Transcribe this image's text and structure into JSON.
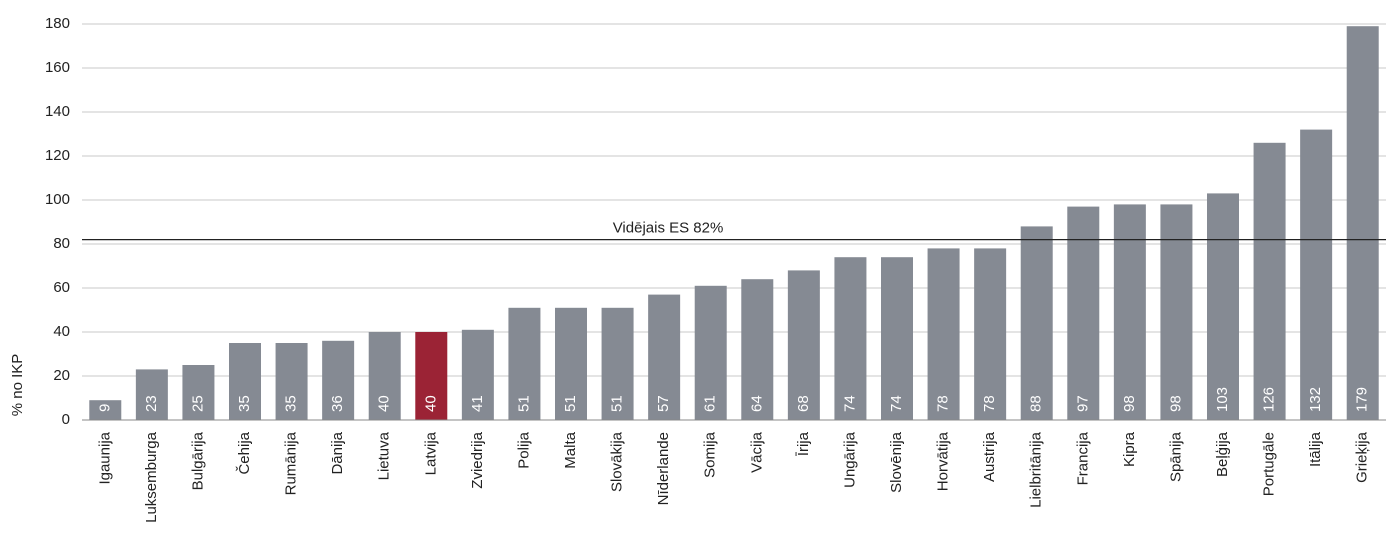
{
  "chart_data": {
    "type": "bar",
    "y_label": "% no IKP",
    "categories": [
      "Igaunija",
      "Luksemburga",
      "Bulgārija",
      "Čehija",
      "Rumānija",
      "Dānija",
      "Lietuva",
      "Latvija",
      "Zviedrija",
      "Polija",
      "Malta",
      "Slovākija",
      "Nīderlande",
      "Somija",
      "Vācija",
      "Īrija",
      "Ungārija",
      "Slovēnija",
      "Horvātija",
      "Austrija",
      "Lielbritānija",
      "Francija",
      "Kipra",
      "Spānija",
      "Beļģija",
      "Portugāle",
      "Itālija",
      "Grieķija"
    ],
    "values": [
      9,
      23,
      25,
      35,
      35,
      36,
      40,
      40,
      41,
      51,
      51,
      51,
      57,
      61,
      64,
      68,
      74,
      74,
      78,
      78,
      88,
      97,
      98,
      98,
      103,
      126,
      132,
      179
    ],
    "colors": [
      "#858a93",
      "#858a93",
      "#858a93",
      "#858a93",
      "#858a93",
      "#858a93",
      "#858a93",
      "#9b2335",
      "#858a93",
      "#858a93",
      "#858a93",
      "#858a93",
      "#858a93",
      "#858a93",
      "#858a93",
      "#858a93",
      "#858a93",
      "#858a93",
      "#858a93",
      "#858a93",
      "#858a93",
      "#858a93",
      "#858a93",
      "#858a93",
      "#858a93",
      "#858a93",
      "#858a93",
      "#858a93"
    ],
    "ylim": [
      0,
      180
    ],
    "yticks": [
      0,
      20,
      40,
      60,
      80,
      100,
      120,
      140,
      160,
      180
    ],
    "grid": true,
    "reference_line": {
      "value": 82,
      "label": "Vidējais ES 82%"
    }
  }
}
